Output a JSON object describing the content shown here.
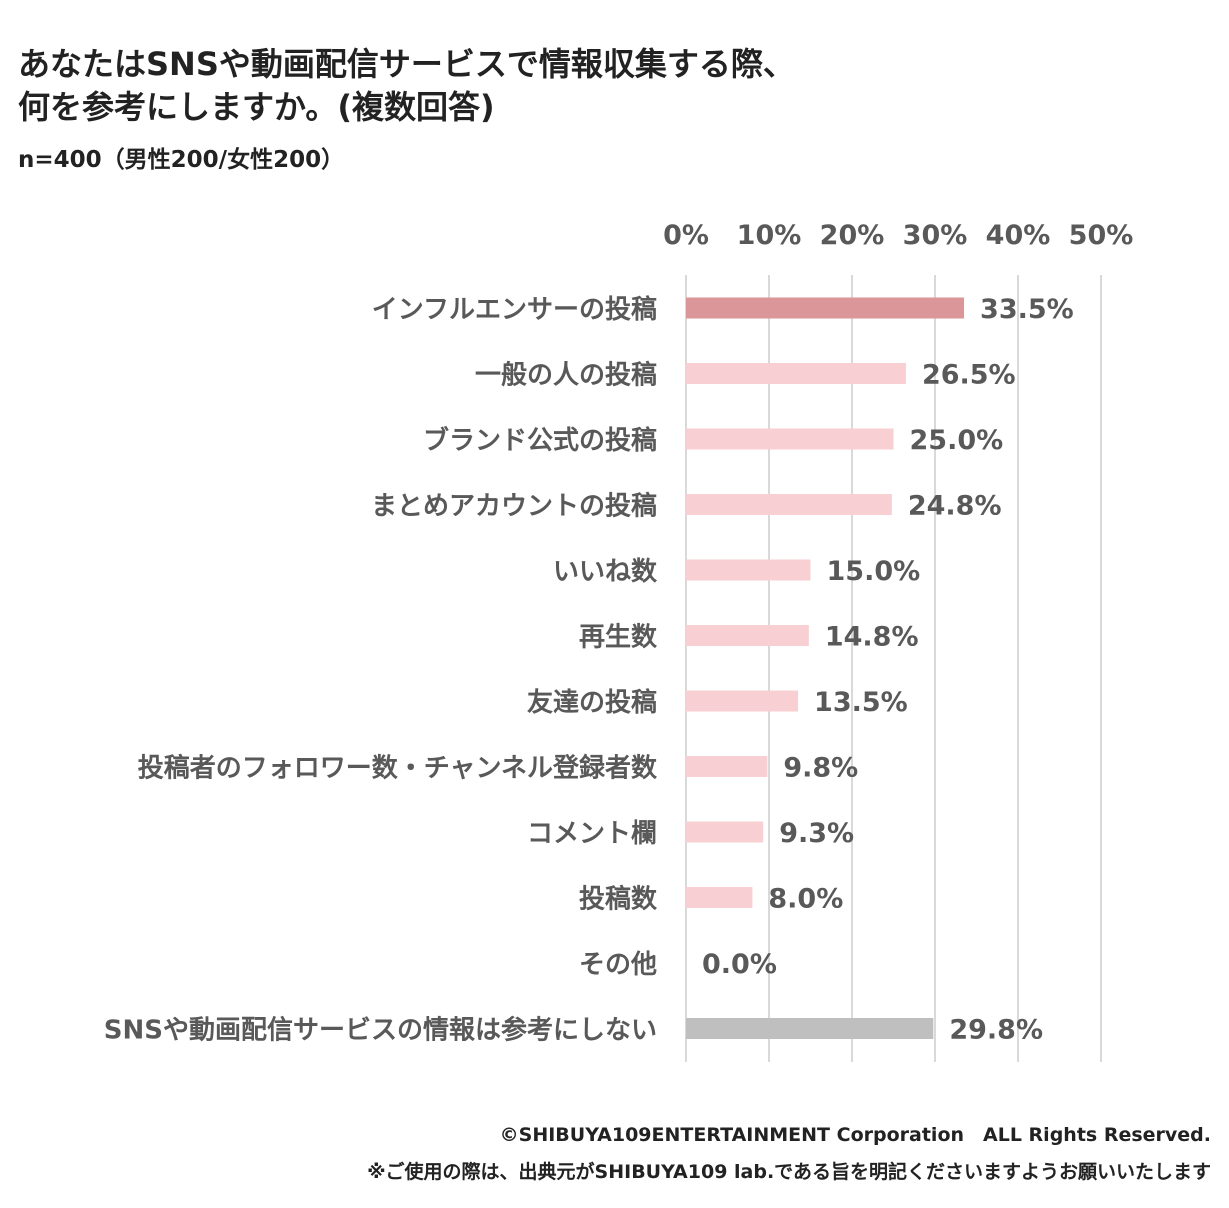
{
  "title_lines": [
    "あなたはSNSや動画配信サービスで情報収集する際、",
    "何を参考にしますか。(複数回答)"
  ],
  "subtitle": "n=400（男性200/女性200）",
  "colors": {
    "highlight_bar": "#da9698",
    "normal_bar": "#f8cfd2",
    "none_bar": "#bfbfbf",
    "gridline": "#d9d9d9",
    "category_text": "#595959",
    "value_text": "#595959",
    "tick_text": "#595959"
  },
  "chart_data": {
    "type": "bar",
    "orientation": "horizontal",
    "title": "あなたはSNSや動画配信サービスで情報収集する際、何を参考にしますか。(複数回答)",
    "xlim": [
      0,
      50
    ],
    "ticks": [
      0,
      10,
      20,
      30,
      40,
      50
    ],
    "tick_labels": [
      "0%",
      "10%",
      "20%",
      "30%",
      "40%",
      "50%"
    ],
    "tick_position": "top",
    "grid": true,
    "categories": [
      "インフルエンサーの投稿",
      "一般の人の投稿",
      "ブランド公式の投稿",
      "まとめアカウントの投稿",
      "いいね数",
      "再生数",
      "友達の投稿",
      "投稿者のフォロワー数・チャンネル登録者数",
      "コメント欄",
      "投稿数",
      "その他",
      "SNSや動画配信サービスの情報は参考にしない"
    ],
    "values": [
      33.5,
      26.5,
      25.0,
      24.8,
      15.0,
      14.8,
      13.5,
      9.8,
      9.3,
      8.0,
      0.0,
      29.8
    ],
    "value_labels": [
      "33.5%",
      "26.5%",
      "25.0%",
      "24.8%",
      "15.0%",
      "14.8%",
      "13.5%",
      "9.8%",
      "9.3%",
      "8.0%",
      "0.0%",
      "29.8%"
    ],
    "bar_styles": [
      "highlight",
      "normal",
      "normal",
      "normal",
      "normal",
      "normal",
      "normal",
      "normal",
      "normal",
      "normal",
      "normal",
      "none"
    ]
  },
  "footer": {
    "copyright": "©SHIBUYA109ENTERTAINMENT Corporation　ALL Rights Reserved.",
    "note": "※ご使用の際は、出典元がSHIBUYA109 lab.である旨を明記くださいますようお願いいたします"
  }
}
